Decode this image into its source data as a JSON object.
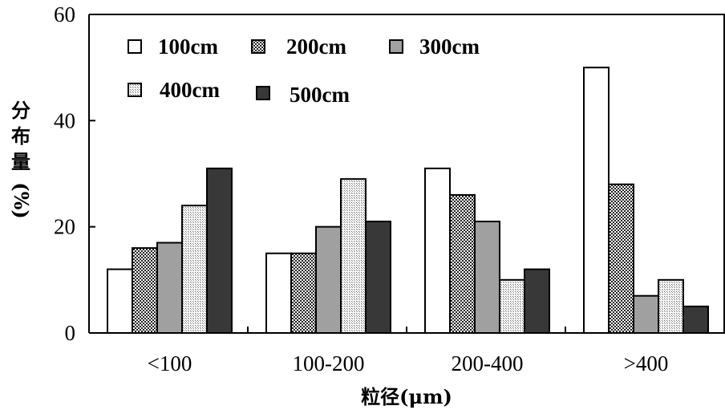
{
  "chart_data": {
    "type": "bar",
    "categories": [
      "<100",
      "100-200",
      "200-400",
      ">400"
    ],
    "series": [
      {
        "name": "100cm",
        "values": [
          12,
          15,
          31,
          50
        ],
        "fill": "pat-white"
      },
      {
        "name": "200cm",
        "values": [
          16,
          15,
          26,
          28
        ],
        "fill": "pat-cross"
      },
      {
        "name": "300cm",
        "values": [
          17,
          20,
          21,
          7
        ],
        "fill": "pat-gray"
      },
      {
        "name": "400cm",
        "values": [
          24,
          29,
          10,
          10
        ],
        "fill": "pat-dots"
      },
      {
        "name": "500cm",
        "values": [
          31,
          21,
          12,
          5
        ],
        "fill": "pat-dark"
      }
    ],
    "yticks": [
      "0",
      "20",
      "40",
      "60"
    ],
    "ylim": [
      0,
      60
    ],
    "xlabel": "粒径(μm)",
    "ylabel_chars": [
      "分",
      "布",
      "量",
      "(%)"
    ],
    "legend_position": "top-left",
    "grid": false,
    "colors": {
      "gray": "#a0a0a0",
      "dark": "#383838",
      "axis": "#000000"
    }
  }
}
